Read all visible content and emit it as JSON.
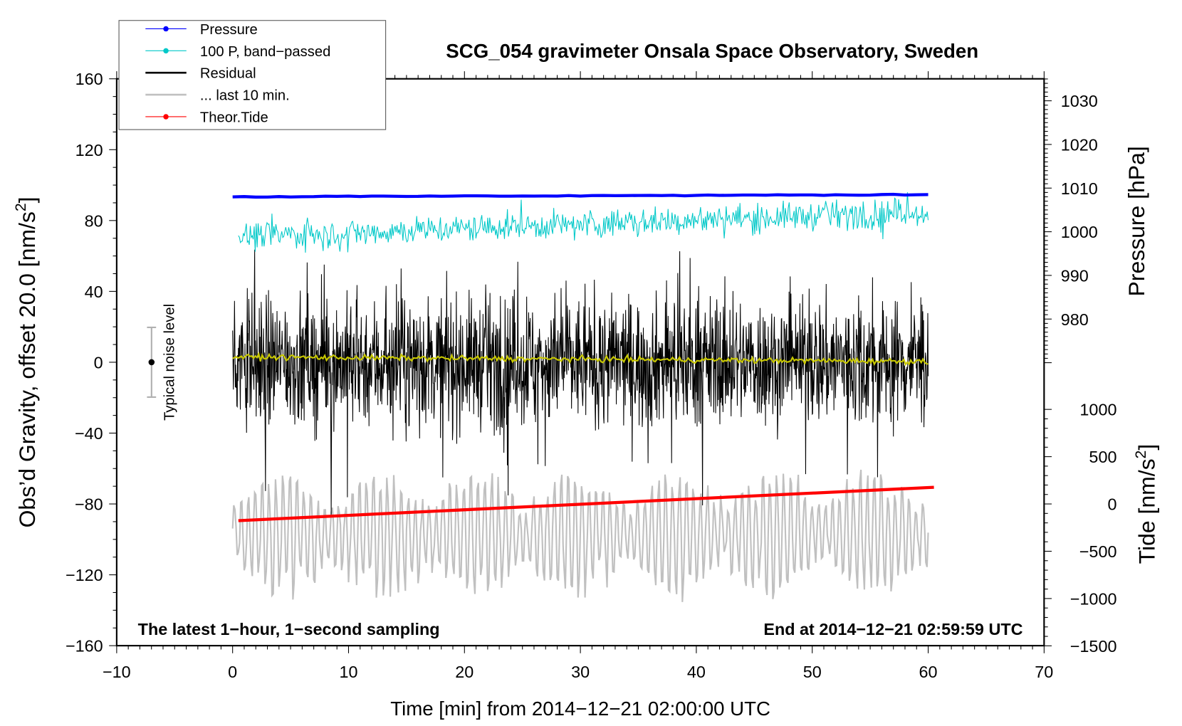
{
  "chart_data": {
    "type": "line",
    "title": "SCG_054 gravimeter Onsala Space Observatory, Sweden",
    "xlabel": "Time [min] from 2014−12−21 02:00:00 UTC",
    "ylabel": "Obs’d Gravity, offset 20.0 [nm/s²]",
    "ylabel_parts": {
      "main": "Obs’d Gravity, offset 20.0 [nm/s",
      "sup": "2",
      "end": "]"
    },
    "y2label": "Pressure [hPa]",
    "y3label": {
      "main": "Tide [nm/s",
      "sup": "2",
      "end": "]"
    },
    "xlim": [
      -10,
      70
    ],
    "ylim": [
      -160,
      160
    ],
    "pressure_lim": [
      980,
      1030
    ],
    "tide_lim": [
      -1500,
      1000
    ],
    "xticks": [
      "−10",
      "0",
      "10",
      "20",
      "30",
      "40",
      "50",
      "60",
      "70"
    ],
    "yticks": [
      "160",
      "120",
      "80",
      "40",
      "0",
      "−40",
      "−80",
      "−120",
      "−160"
    ],
    "pressure_ticks": [
      "1030",
      "1020",
      "1010",
      "1000",
      "990",
      "980"
    ],
    "tide_ticks": [
      "1000",
      "500",
      "0",
      "−500",
      "−1000",
      "−1500"
    ],
    "annotations": {
      "bottom_left": "The latest 1−hour, 1−second sampling",
      "bottom_right": "End at 2014−12−21 02:59:59 UTC",
      "noise_label": "Typical noise level",
      "noise_level": 20
    },
    "legend": {
      "placement": "top-left",
      "entries": [
        {
          "label": "Pressure",
          "color": "#0000ff",
          "marker": true
        },
        {
          "label": "100 P, band−passed",
          "color": "#00c8c8",
          "marker": true
        },
        {
          "label": "Residual",
          "color": "#000000",
          "marker": false
        },
        {
          "label": "... last 10 min.",
          "color": "#c0c0c0",
          "marker": false
        },
        {
          "label": "Theor.Tide",
          "color": "#ff0000",
          "marker": true
        }
      ]
    },
    "series": [
      {
        "name": "Pressure",
        "axis": "pressure",
        "color": "#0000ff",
        "x_range": [
          0,
          60
        ],
        "start": 1008.0,
        "end": 1008.5,
        "noise": 0.05
      },
      {
        "name": "100 P, band-passed",
        "axis": "gravity",
        "color": "#00c8c8",
        "x_range": [
          0.5,
          60
        ],
        "start": 71,
        "end": 85,
        "noise": 4,
        "spikes": 10
      },
      {
        "name": "Residual",
        "axis": "gravity",
        "color": "#000000",
        "x_range": [
          0,
          60
        ],
        "start": 0,
        "end": 0,
        "noise": 18,
        "spikes": 55
      },
      {
        "name": "Smoothed residual",
        "axis": "gravity",
        "color": "#c8c800",
        "x_range": [
          0,
          60
        ],
        "start": 3,
        "end": 0.5,
        "noise": 0.8
      },
      {
        "name": "... last 10 min.",
        "axis": "gravity",
        "color": "#c0c0c0",
        "x_range": [
          0,
          60
        ],
        "center": -97,
        "amplitude": 28,
        "period_min": 0.6
      },
      {
        "name": "Theor.Tide",
        "axis": "tide",
        "color": "#ff0000",
        "x_range": [
          0.5,
          60.5
        ],
        "start": -176,
        "end": 176
      }
    ]
  }
}
